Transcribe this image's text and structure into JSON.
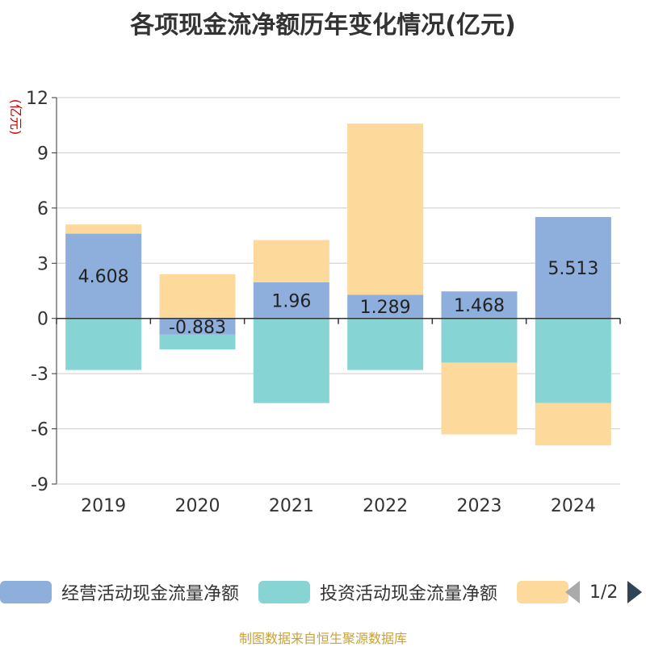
{
  "chart_data": {
    "type": "bar",
    "stacked": true,
    "title": "各项现金流净额历年变化情况(亿元)",
    "ylabel": "(亿元)",
    "xlabel": "",
    "categories": [
      "2019",
      "2020",
      "2021",
      "2022",
      "2023",
      "2024"
    ],
    "ylim": [
      -9,
      12
    ],
    "yticks": [
      12,
      9,
      6,
      3,
      0,
      -3,
      -6,
      -9
    ],
    "series": [
      {
        "name": "经营活动现金流量净额",
        "color": "#8eaedb",
        "values": [
          4.608,
          -0.883,
          1.96,
          1.289,
          1.468,
          5.513
        ],
        "labels": [
          "4.608",
          "-0.883",
          "1.96",
          "1.289",
          "1.468",
          "5.513"
        ]
      },
      {
        "name": "投资活动现金流量净额",
        "color": "#86d4d4",
        "values": [
          -2.8,
          -0.8,
          -4.6,
          -2.8,
          -2.4,
          -4.6
        ]
      },
      {
        "name": "",
        "color": "#fdd99b",
        "values": [
          0.5,
          2.4,
          2.3,
          9.3,
          -3.9,
          -2.3
        ]
      }
    ],
    "legend_position": "bottom"
  },
  "legend": {
    "page": "1/2"
  },
  "source": "制图数据来自恒生聚源数据库"
}
